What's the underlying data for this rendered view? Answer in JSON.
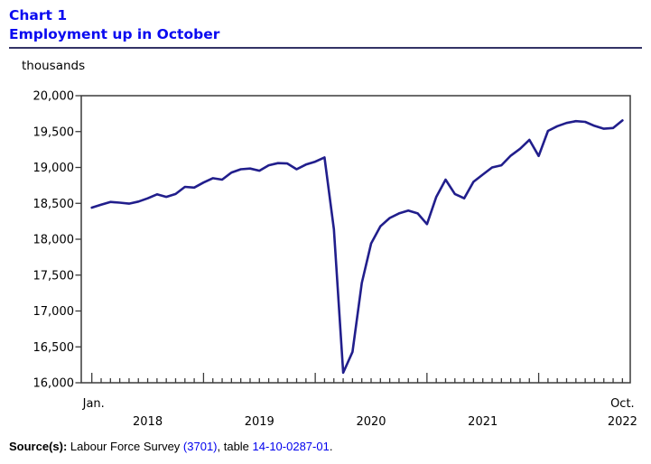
{
  "header": {
    "chart_label": "Chart 1",
    "title": "Employment up in October"
  },
  "y_axis": {
    "unit_label": "thousands",
    "tick_labels": [
      "20,000",
      "19,500",
      "19,000",
      "18,500",
      "18,000",
      "17,500",
      "17,000",
      "16,500",
      "16,000"
    ]
  },
  "x_axis": {
    "first_tick_label": "Jan.",
    "last_tick_label": "Oct.",
    "year_labels": [
      "2018",
      "2019",
      "2020",
      "2021",
      "2022"
    ],
    "minor_ticks": "monthly"
  },
  "source": {
    "label": "Source(s):",
    "text1": " Labour Force Survey ",
    "link1": "(3701)",
    "text2": ", table ",
    "link2": "14-10-0287-01",
    "text3": "."
  },
  "colors": {
    "title": "#0a0af0",
    "rule": "#333366",
    "link": "#0000ee",
    "line": "#211e8c",
    "axis": "#3a3a3a"
  },
  "chart_data": {
    "type": "line",
    "title": "Employment up in October",
    "ylabel": "thousands",
    "ylim": [
      16000,
      20000
    ],
    "y_tick_step": 500,
    "x_start": "2018-01",
    "x_end": "2022-10",
    "x_frequency": "monthly",
    "grid": false,
    "legend": "none",
    "series": [
      {
        "name": "Employment (thousands)",
        "values": [
          18440,
          18480,
          18520,
          18510,
          18495,
          18525,
          18570,
          18625,
          18590,
          18630,
          18730,
          18720,
          18790,
          18850,
          18830,
          18930,
          18975,
          18985,
          18955,
          19030,
          19060,
          19055,
          18975,
          19040,
          19080,
          19140,
          18140,
          16140,
          16430,
          17390,
          17940,
          18180,
          18295,
          18360,
          18400,
          18360,
          18210,
          18590,
          18830,
          18630,
          18570,
          18800,
          18900,
          19000,
          19030,
          19165,
          19260,
          19385,
          19160,
          19510,
          19575,
          19620,
          19645,
          19635,
          19580,
          19540,
          19550,
          19655
        ]
      }
    ]
  }
}
